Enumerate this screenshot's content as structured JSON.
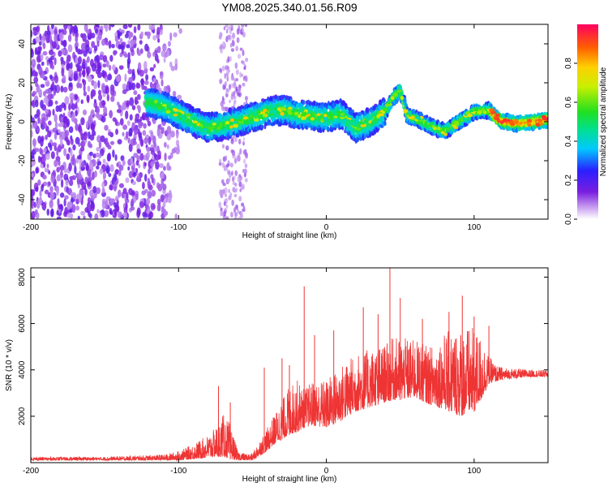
{
  "title": "YM08.2025.340.01.56.R09",
  "chart_data": [
    {
      "type": "heatmap",
      "xlabel": "Height of straight line (km)",
      "ylabel": "Frequency (Hz)",
      "xlim": [
        -200,
        150
      ],
      "ylim": [
        -50,
        50
      ],
      "x_ticks": [
        -200,
        -100,
        0,
        100
      ],
      "y_ticks": [
        -40,
        -20,
        0,
        20,
        40
      ],
      "ridge": {
        "x": [
          -120,
          -110,
          -100,
          -90,
          -80,
          -70,
          -60,
          -50,
          -40,
          -30,
          -20,
          -10,
          0,
          10,
          20,
          30,
          40,
          45,
          50,
          55,
          60,
          70,
          80,
          90,
          100,
          110,
          115,
          120,
          130,
          140,
          150
        ],
        "y": [
          10,
          8,
          4,
          0,
          -3,
          -2,
          0,
          2,
          5,
          6,
          4,
          3,
          2,
          4,
          -3,
          0,
          5,
          12,
          16,
          3,
          2,
          -2,
          -5,
          0,
          5,
          6,
          2,
          0,
          -1,
          0,
          1
        ]
      },
      "colorbar": {
        "label": "Normalized spectral amplitude",
        "range": [
          0,
          1
        ],
        "ticks": [
          "0.0",
          "0.2",
          "0.4",
          "0.6",
          "0.8"
        ]
      }
    },
    {
      "type": "line",
      "xlabel": "Height of straight line (km)",
      "ylabel": "SNR (10 * v/v)",
      "xlim": [
        -200,
        150
      ],
      "ylim": [
        0,
        8400
      ],
      "x_ticks": [
        -200,
        -100,
        0,
        100
      ],
      "y_ticks": [
        2000,
        4000,
        6000,
        8000
      ],
      "color": "#ef3434",
      "envelope": {
        "x": [
          -200,
          -150,
          -110,
          -100,
          -90,
          -80,
          -75,
          -70,
          -65,
          -60,
          -55,
          -50,
          -45,
          -40,
          -35,
          -30,
          -25,
          -20,
          -15,
          -10,
          0,
          10,
          20,
          30,
          40,
          45,
          50,
          60,
          70,
          80,
          90,
          100,
          105,
          110,
          115,
          120,
          130,
          140,
          150
        ],
        "low": [
          100,
          100,
          100,
          100,
          150,
          200,
          250,
          250,
          150,
          100,
          100,
          100,
          300,
          500,
          800,
          1000,
          1200,
          1300,
          1500,
          1600,
          1500,
          1800,
          2200,
          2400,
          2600,
          2700,
          2700,
          2800,
          2500,
          2300,
          2000,
          2200,
          2700,
          3400,
          3500,
          3600,
          3650,
          3700,
          3700
        ],
        "high": [
          250,
          250,
          350,
          500,
          800,
          1200,
          1500,
          2100,
          1700,
          500,
          400,
          400,
          1000,
          1500,
          2100,
          2700,
          3300,
          3600,
          3200,
          3500,
          3600,
          4200,
          4700,
          4900,
          5100,
          5400,
          5400,
          5300,
          5000,
          5600,
          5900,
          5800,
          5400,
          4600,
          4200,
          4100,
          4050,
          4000,
          4000
        ]
      },
      "spikes": [
        {
          "x": -73,
          "y": 3300
        },
        {
          "x": -65,
          "y": 2600
        },
        {
          "x": -42,
          "y": 4100
        },
        {
          "x": -30,
          "y": 4500
        },
        {
          "x": -25,
          "y": 4200
        },
        {
          "x": -15,
          "y": 7600
        },
        {
          "x": -8,
          "y": 5500
        },
        {
          "x": 5,
          "y": 5700
        },
        {
          "x": 25,
          "y": 6700
        },
        {
          "x": 35,
          "y": 6400
        },
        {
          "x": 43,
          "y": 8400
        },
        {
          "x": 50,
          "y": 7100
        },
        {
          "x": 65,
          "y": 6200
        },
        {
          "x": 83,
          "y": 6500
        },
        {
          "x": 92,
          "y": 7200
        },
        {
          "x": 100,
          "y": 6300
        },
        {
          "x": 110,
          "y": 5900
        }
      ]
    }
  ]
}
